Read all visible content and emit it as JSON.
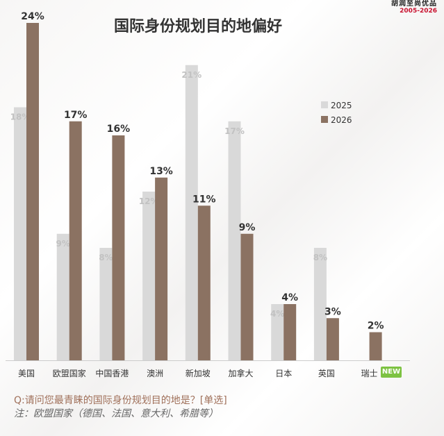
{
  "brand": {
    "name": "胡润至尚优品",
    "years": "2005-2026"
  },
  "chart_data": {
    "type": "bar",
    "title": "国际身份规划目的地偏好",
    "categories": [
      "美国",
      "欧盟国家",
      "中国香港",
      "澳洲",
      "新加坡",
      "加拿大",
      "日本",
      "英国",
      "瑞士"
    ],
    "series": [
      {
        "name": "2025",
        "values": [
          18,
          9,
          8,
          12,
          21,
          17,
          4,
          8,
          null
        ],
        "labels": [
          "18%",
          "9%",
          "8%",
          "12%",
          "21%",
          "17%",
          "4%",
          "8%",
          ""
        ]
      },
      {
        "name": "2026",
        "values": [
          24,
          17,
          16,
          13,
          11,
          9,
          4,
          3,
          2
        ],
        "labels": [
          "24%",
          "17%",
          "16%",
          "13%",
          "11%",
          "9%",
          "4%",
          "3%",
          "2%"
        ]
      }
    ],
    "ylim": [
      0,
      25
    ],
    "grid": false,
    "legend_position": "top-right",
    "colors": {
      "2025": "#d9d9d9",
      "2026": "#8b7262"
    }
  },
  "badge": {
    "label": "NEW"
  },
  "notes": {
    "question": "Q:请问您最青睐的国际身份规划目的地是？[单选]",
    "footnote": "注：欧盟国家（德国、法国、意大利、希腊等）"
  }
}
